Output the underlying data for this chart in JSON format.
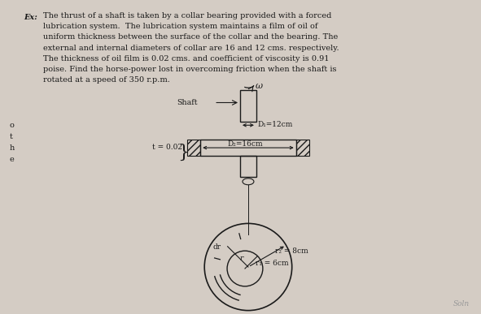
{
  "bg_color": "#d4ccc4",
  "text_color": "#1a1a1a",
  "title_text": [
    "The thrust of a shaft is taken by a collar bearing provided with a forced",
    "lubrication system.  The lubrication system maintains a film of oil of",
    "uniform thickness between the surface of the collar and the bearing. The",
    "external and internal diameters of collar are 16 and 12 cms. respectively.",
    "The thickness of oil film is 0.02 cms. and coefficient of viscosity is 0.91",
    "poise. Find the horse-power lost in overcoming friction when the shaft is",
    "rotated at a speed of 350 r.p.m."
  ],
  "side_letters": [
    "o",
    "t",
    "h",
    "e"
  ],
  "omega_label": "ω",
  "shaft_label": "Shaft",
  "D1_label": "D₁=12cm",
  "D2_label": "D₂=16cm",
  "t_label": "t = 0.02",
  "dr_label": "dr",
  "r_label": "r",
  "r1_label": "r₁ = 6cm",
  "r2_label": "r₂ = 8cm",
  "ex_label": "Ex:",
  "soln_label": "Soln"
}
